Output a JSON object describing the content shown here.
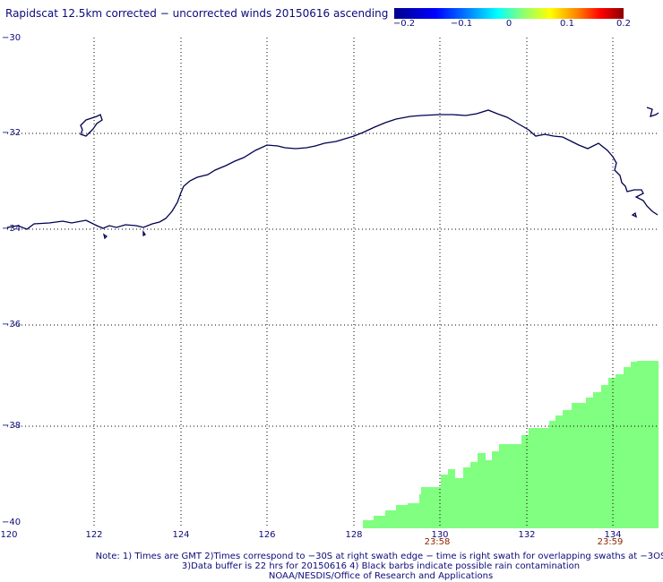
{
  "title": "Rapidscat 12.5km corrected − uncorrected winds 20150616 ascending",
  "colorbar": {
    "ticks": [
      "−0.2",
      "−0.1",
      "0",
      "0.1",
      "0.2"
    ],
    "range": [
      -0.2,
      0.2
    ]
  },
  "axes": {
    "lat_labels": [
      "−30",
      "−32",
      "−34",
      "−36",
      "−38",
      "−40"
    ],
    "lon_labels": [
      "120",
      "122",
      "124",
      "126",
      "128",
      "130",
      "132",
      "134"
    ],
    "lat_range": [
      -40,
      -30
    ],
    "lon_range": [
      120,
      135
    ]
  },
  "times": [
    "23:58",
    "23:59"
  ],
  "notes": [
    "Note: 1) Times are GMT 2)Times correspond to −30S at right swath edge − time is right swath for overlapping swaths at −3OS",
    "3)Data buffer is 22 hrs for 20150616 4) Black barbs indicate possible rain contamination",
    "NOAA/NESDIS/Office of Research and Applications"
  ],
  "colors": {
    "swath": "#80ff80",
    "coast": "#000050",
    "grid": "#000000"
  }
}
